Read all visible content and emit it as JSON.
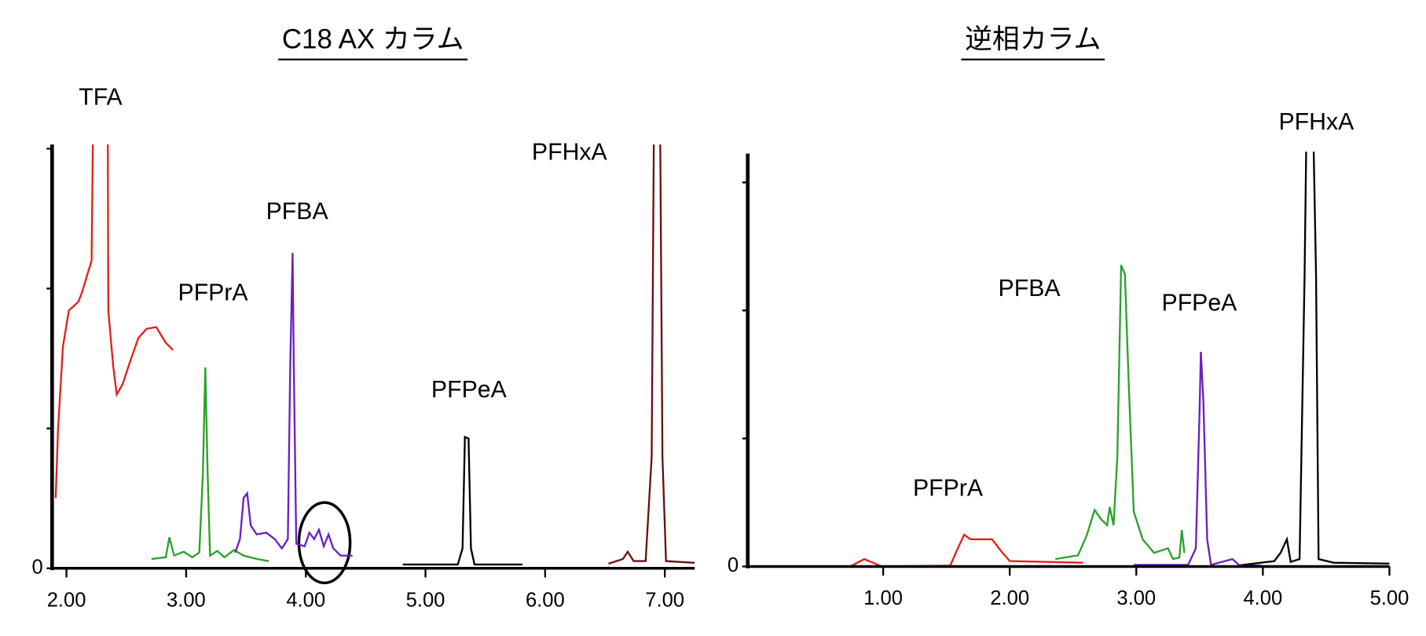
{
  "chart_data": [
    {
      "type": "line",
      "title": "C18 AX カラム",
      "xlim": [
        1.88,
        7.25
      ],
      "xticks": [
        {
          "value": 2,
          "label": "2.00"
        },
        {
          "value": 3,
          "label": "3.00"
        },
        {
          "value": 4,
          "label": "4.00"
        },
        {
          "value": 5,
          "label": "5.00"
        },
        {
          "value": 6,
          "label": "6.00"
        },
        {
          "value": 7,
          "label": "7.00"
        }
      ],
      "ylim": [
        0,
        100
      ],
      "yticks": [
        0
      ],
      "minor_yticks": [
        33,
        66,
        99
      ],
      "series": [
        {
          "name": "TFA",
          "color": "#e0201b",
          "x": [
            1.91,
            1.93,
            1.97,
            2.02,
            2.1,
            2.13,
            2.21,
            2.24,
            2.34,
            2.35,
            2.39,
            2.42,
            2.47,
            2.52,
            2.6,
            2.67,
            2.75,
            2.83,
            2.89
          ],
          "values": [
            16.6,
            32.8,
            52.2,
            60.8,
            62.9,
            65.1,
            72.6,
            150,
            150,
            60.8,
            47.8,
            41.0,
            43.5,
            47.8,
            54.3,
            56.5,
            56.9,
            53.2,
            51.5
          ]
        },
        {
          "name": "PFPrA",
          "color": "#2ca02c",
          "x": [
            2.71,
            2.83,
            2.86,
            2.9,
            2.98,
            3.05,
            3.11,
            3.14,
            3.16,
            3.18,
            3.2,
            3.26,
            3.32,
            3.4,
            3.48,
            3.59,
            3.69
          ],
          "values": [
            2.2,
            2.6,
            7.3,
            3.0,
            3.9,
            2.6,
            3.7,
            22,
            47.4,
            22,
            3.0,
            4.1,
            2.6,
            4.3,
            3.0,
            2.2,
            1.7
          ]
        },
        {
          "name": "PFBA",
          "color": "#6a1fc2",
          "x": [
            3.41,
            3.45,
            3.48,
            3.51,
            3.54,
            3.59,
            3.67,
            3.74,
            3.8,
            3.85,
            3.87,
            3.89,
            3.9,
            3.92,
            3.99,
            4.03,
            4.07,
            4.11,
            4.15,
            4.19,
            4.23,
            4.29,
            4.39
          ],
          "values": [
            3.7,
            6.9,
            16.6,
            17.7,
            10.1,
            8.0,
            8.4,
            6.9,
            4.7,
            6.9,
            47.8,
            74.4,
            47.8,
            5.8,
            5.2,
            8.4,
            6.9,
            9.1,
            5.2,
            8.0,
            4.7,
            3.0,
            3.0
          ]
        },
        {
          "name": "PFPeA",
          "color": "#000000",
          "x": [
            4.81,
            5.27,
            5.31,
            5.33,
            5.36,
            5.38,
            5.41,
            5.81
          ],
          "values": [
            0.9,
            0.9,
            4.7,
            31.0,
            30.6,
            4.7,
            0.9,
            0.9
          ]
        },
        {
          "name": "PFHxA",
          "color": "#6b0f0f",
          "x": [
            6.53,
            6.65,
            6.69,
            6.74,
            6.84,
            6.89,
            6.92,
            6.95,
            6.98,
            7.01,
            7.25
          ],
          "values": [
            1.1,
            2.2,
            3.9,
            1.7,
            1.7,
            26.3,
            150,
            150,
            26.3,
            1.7,
            1.3
          ]
        }
      ]
    },
    {
      "type": "line",
      "title": "逆相カラム",
      "xlim": [
        -0.07,
        5.0
      ],
      "xticks": [
        {
          "value": 1,
          "label": "1.00"
        },
        {
          "value": 2,
          "label": "2.00"
        },
        {
          "value": 3,
          "label": "3.00"
        },
        {
          "value": 4,
          "label": "4.00"
        },
        {
          "value": 5,
          "label": "5.00"
        }
      ],
      "ylim": [
        0,
        100
      ],
      "yticks": [
        0
      ],
      "minor_yticks": [
        31,
        62,
        93
      ],
      "series": [
        {
          "name": "PFPrA",
          "color": "#e0201b",
          "x": [
            -0.07,
            0.74,
            0.85,
            0.92,
            0.99,
            1.53,
            1.59,
            1.64,
            1.69,
            1.86,
            1.93,
            2.0,
            2.58
          ],
          "values": [
            0,
            0,
            1.8,
            0.9,
            0,
            0.2,
            4.4,
            7.7,
            6.6,
            6.6,
            3.8,
            1.3,
            0.9
          ]
        },
        {
          "name": "PFBA",
          "color": "#2ca02c",
          "x": [
            2.36,
            2.54,
            2.61,
            2.67,
            2.72,
            2.77,
            2.79,
            2.82,
            2.85,
            2.88,
            2.91,
            2.94,
            2.98,
            3.05,
            3.14,
            3.25,
            3.29,
            3.34,
            3.36,
            3.38
          ],
          "values": [
            1.8,
            2.7,
            7.7,
            13.7,
            11.5,
            10.0,
            14.4,
            10.0,
            26.5,
            73.0,
            70.8,
            44.2,
            13.3,
            6.6,
            3.3,
            4.4,
            1.8,
            2.2,
            8.8,
            3.3
          ]
        },
        {
          "name": "PFPeA",
          "color": "#6a1fc2",
          "x": [
            2.98,
            3.41,
            3.47,
            3.5,
            3.51,
            3.53,
            3.56,
            3.59,
            3.76,
            3.81,
            3.99
          ],
          "values": [
            0.4,
            0.4,
            4.4,
            37.6,
            52.0,
            39.8,
            6.6,
            0.4,
            1.8,
            0.4,
            0.2
          ]
        },
        {
          "name": "PFHxA",
          "color": "#000000",
          "x": [
            3.84,
            4.09,
            4.14,
            4.19,
            4.22,
            4.29,
            4.33,
            4.35,
            4.39,
            4.42,
            4.44,
            4.56,
            5.0
          ],
          "values": [
            0.4,
            1.3,
            3.3,
            6.6,
            1.1,
            1.8,
            70.8,
            120,
            120,
            70.8,
            1.8,
            0.9,
            0.7
          ]
        }
      ]
    }
  ]
}
